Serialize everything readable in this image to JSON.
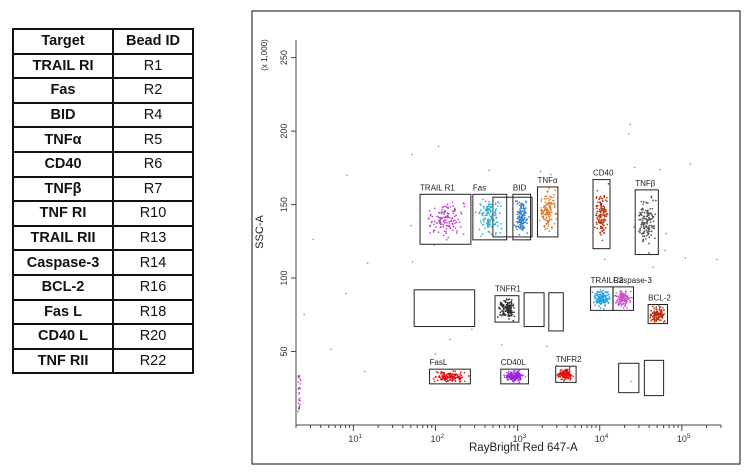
{
  "table": {
    "headers": [
      "Target",
      "Bead ID"
    ],
    "rows": [
      [
        "TRAIL RI",
        "R1"
      ],
      [
        "Fas",
        "R2"
      ],
      [
        "BID",
        "R4"
      ],
      [
        "TNFα",
        "R5"
      ],
      [
        "CD40",
        "R6"
      ],
      [
        "TNFβ",
        "R7"
      ],
      [
        "TNF RI",
        "R10"
      ],
      [
        "TRAIL RII",
        "R13"
      ],
      [
        "Caspase-3",
        "R14"
      ],
      [
        "BCL-2",
        "R16"
      ],
      [
        "Fas L",
        "R18"
      ],
      [
        "CD40 L",
        "R20"
      ],
      [
        "TNF RII",
        "R22"
      ]
    ]
  },
  "chart_data": {
    "type": "scatter",
    "xlabel": "RayBright Red 647-A",
    "ylabel": "SSC-A",
    "y_multiplier_label": "(x 1,000)",
    "xscale": "log",
    "xlim": [
      2,
      300000
    ],
    "ylim": [
      0,
      262
    ],
    "x_ticks": [
      {
        "value": 10,
        "base": "10",
        "exp": "1"
      },
      {
        "value": 100,
        "base": "10",
        "exp": "2"
      },
      {
        "value": 1000,
        "base": "10",
        "exp": "3"
      },
      {
        "value": 10000,
        "base": "10",
        "exp": "4"
      },
      {
        "value": 100000,
        "base": "10",
        "exp": "5"
      }
    ],
    "y_ticks": [
      50,
      100,
      150,
      200,
      250
    ],
    "grid": false,
    "labeled_populations": [
      {
        "name": "TRAIL R1",
        "color": "#c040d0",
        "x_range": [
          70,
          250
        ],
        "y_range": [
          125,
          155
        ]
      },
      {
        "name": "Fas",
        "color": "#30b0d0",
        "x_range": [
          300,
          700
        ],
        "y_range": [
          128,
          155
        ]
      },
      {
        "name": "BID",
        "color": "#3080d0",
        "x_range": [
          900,
          1400
        ],
        "y_range": [
          128,
          155
        ]
      },
      {
        "name": "TNFα",
        "color": "#e08030",
        "x_range": [
          1800,
          3000
        ],
        "y_range": [
          130,
          160
        ]
      },
      {
        "name": "CD40",
        "color": "#c03010",
        "x_range": [
          8500,
          13000
        ],
        "y_range": [
          122,
          165
        ]
      },
      {
        "name": "TNFβ",
        "color": "#505050",
        "x_range": [
          28000,
          50000
        ],
        "y_range": [
          118,
          158
        ]
      },
      {
        "name": "TNFR1",
        "color": "#303030",
        "x_range": [
          550,
          1000
        ],
        "y_range": [
          72,
          86
        ]
      },
      {
        "name": "TRAILR2",
        "color": "#20a0e0",
        "x_range": [
          8000,
          14000
        ],
        "y_range": [
          80,
          92
        ]
      },
      {
        "name": "Caspase-3",
        "color": "#d050d0",
        "x_range": [
          15000,
          25000
        ],
        "y_range": [
          80,
          92
        ]
      },
      {
        "name": "BCL-2",
        "color": "#c03010",
        "x_range": [
          40000,
          65000
        ],
        "y_range": [
          71,
          80
        ]
      },
      {
        "name": "FasL",
        "color": "#e01010",
        "x_range": [
          90,
          250
        ],
        "y_range": [
          30,
          36
        ]
      },
      {
        "name": "CD40L",
        "color": "#a020e0",
        "x_range": [
          650,
          1300
        ],
        "y_range": [
          30,
          36
        ]
      },
      {
        "name": "TNFR2",
        "color": "#e01010",
        "x_range": [
          3000,
          5000
        ],
        "y_range": [
          31,
          38
        ]
      }
    ],
    "unlabeled_gates": [
      {
        "x_range": [
          55,
          300
        ],
        "y_range": [
          67,
          92
        ]
      },
      {
        "x_range": [
          500,
          1500
        ],
        "y_range": [
          128,
          155
        ]
      },
      {
        "x_range": [
          1200,
          2100
        ],
        "y_range": [
          67,
          90
        ]
      },
      {
        "x_range": [
          2400,
          3600
        ],
        "y_range": [
          64,
          90
        ]
      },
      {
        "x_range": [
          17000,
          30000
        ],
        "y_range": [
          22,
          42
        ]
      },
      {
        "x_range": [
          35000,
          60000
        ],
        "y_range": [
          20,
          44
        ]
      }
    ]
  }
}
